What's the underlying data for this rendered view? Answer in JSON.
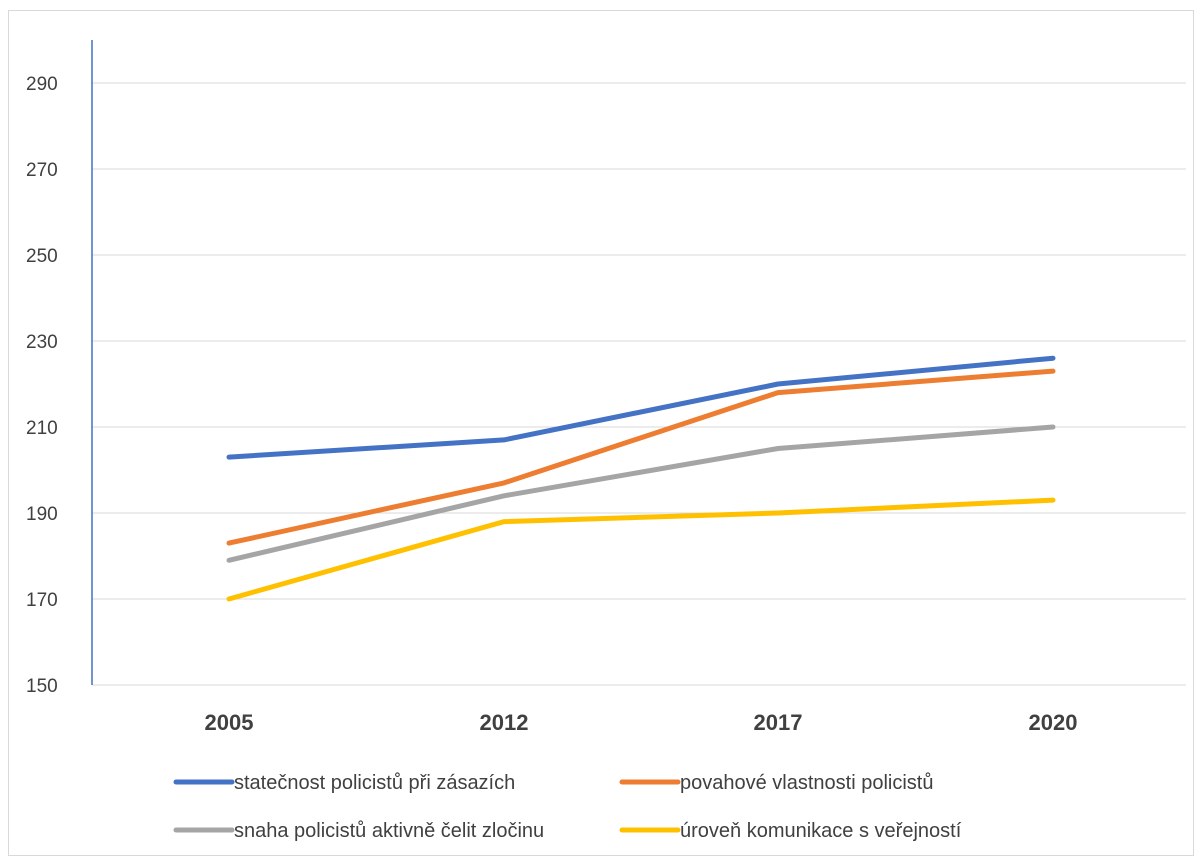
{
  "chart_data": {
    "type": "line",
    "categories": [
      "2005",
      "2012",
      "2017",
      "2020"
    ],
    "ylim": [
      150,
      300
    ],
    "yticks": [
      150,
      170,
      190,
      210,
      230,
      250,
      270,
      290
    ],
    "grid": true,
    "legend_position": "bottom",
    "series": [
      {
        "name": "statečnost policistů při zásazích",
        "color": "#4472c4",
        "values": [
          203,
          207,
          220,
          226
        ]
      },
      {
        "name": "povahové vlastnosti policistů",
        "color": "#ed7d31",
        "values": [
          183,
          197,
          218,
          223
        ]
      },
      {
        "name": "snaha policistů aktivně čelit zločinu",
        "color": "#a5a5a5",
        "values": [
          179,
          194,
          205,
          210
        ]
      },
      {
        "name": "úroveň komunikace s veřejností",
        "color": "#ffc000",
        "values": [
          170,
          188,
          190,
          193
        ]
      }
    ]
  }
}
